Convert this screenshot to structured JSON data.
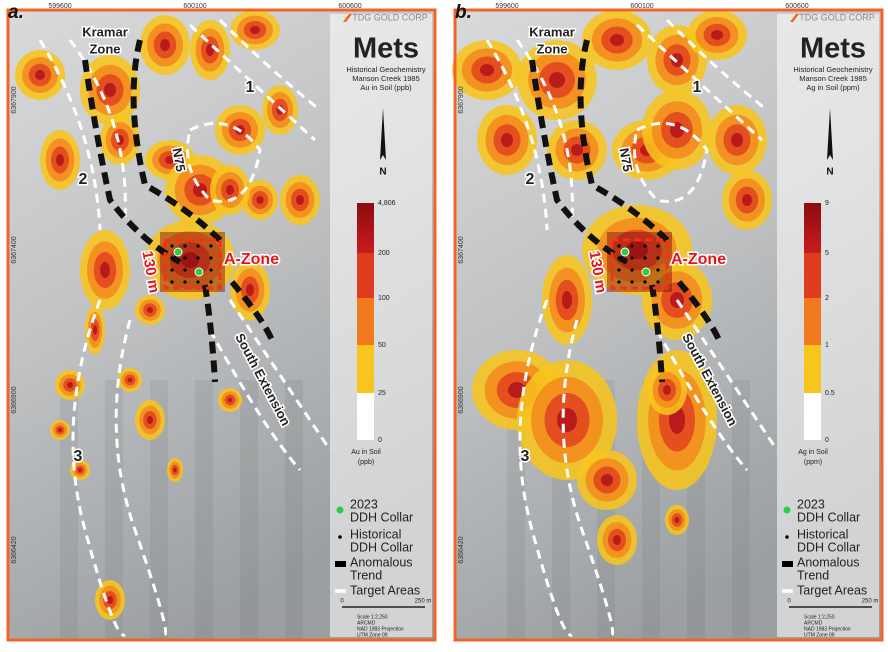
{
  "panels": [
    {
      "label": "a.",
      "easting": [
        "599600",
        "600100",
        "600600"
      ],
      "northing": [
        "6367900",
        "6367400",
        "6366900",
        "6366420"
      ],
      "logo": "TDG GOLD CORP",
      "title": "Mets",
      "subtitle": [
        "Historical Geochemistry",
        "Manson Creek 1985",
        "Au in Soil (ppb)"
      ],
      "north": "N",
      "scale_labels": [
        "4,806",
        "200",
        "100",
        "50",
        "25",
        "0"
      ],
      "scale_title": [
        "Au in Soil",
        "(ppb)"
      ],
      "map_labels": {
        "kramar": [
          "Kramar",
          "Zone"
        ],
        "target_1": "1",
        "target_2": "2",
        "target_3": "3",
        "n75": "N75",
        "a_zone": "A-Zone",
        "width": "130 m",
        "south": "South Extension"
      },
      "legend": [
        [
          "2023",
          "DDH Collar"
        ],
        [
          "Historical",
          "DDH Collar"
        ],
        [
          "Anomalous",
          "Trend"
        ],
        [
          "Target Areas"
        ]
      ],
      "scale_bar": [
        "0",
        "250 m"
      ],
      "notes": [
        "Scale 1:2,250",
        "ARCMD",
        "NAD 1983 Projection",
        "UTM Zone 09"
      ]
    },
    {
      "label": "b.",
      "easting": [
        "599600",
        "600100",
        "600600"
      ],
      "northing": [
        "6367900",
        "6367400",
        "6366900",
        "6366420"
      ],
      "logo": "TDG GOLD CORP",
      "title": "Mets",
      "subtitle": [
        "Historical Geochemistry",
        "Manson Creek 1985",
        "Ag in Soil (ppm)"
      ],
      "north": "N",
      "scale_labels": [
        "9",
        "5",
        "2",
        "1",
        "0.5",
        "0"
      ],
      "scale_title": [
        "Ag in Soil",
        "(ppm)"
      ],
      "map_labels": {
        "kramar": [
          "Kramar",
          "Zone"
        ],
        "target_1": "1",
        "target_2": "2",
        "target_3": "3",
        "n75": "N75",
        "a_zone": "A-Zone",
        "width": "130 m",
        "south": "South Extension"
      },
      "legend": [
        [
          "2023",
          "DDH Collar"
        ],
        [
          "Historical",
          "DDH Collar"
        ],
        [
          "Anomalous",
          "Trend"
        ],
        [
          "Target Areas"
        ]
      ],
      "scale_bar": [
        "0",
        "250 m"
      ],
      "notes": [
        "Scale 1:2,250",
        "ARCMD",
        "NAD 1983 Projection",
        "UTM Zone 09"
      ]
    }
  ]
}
